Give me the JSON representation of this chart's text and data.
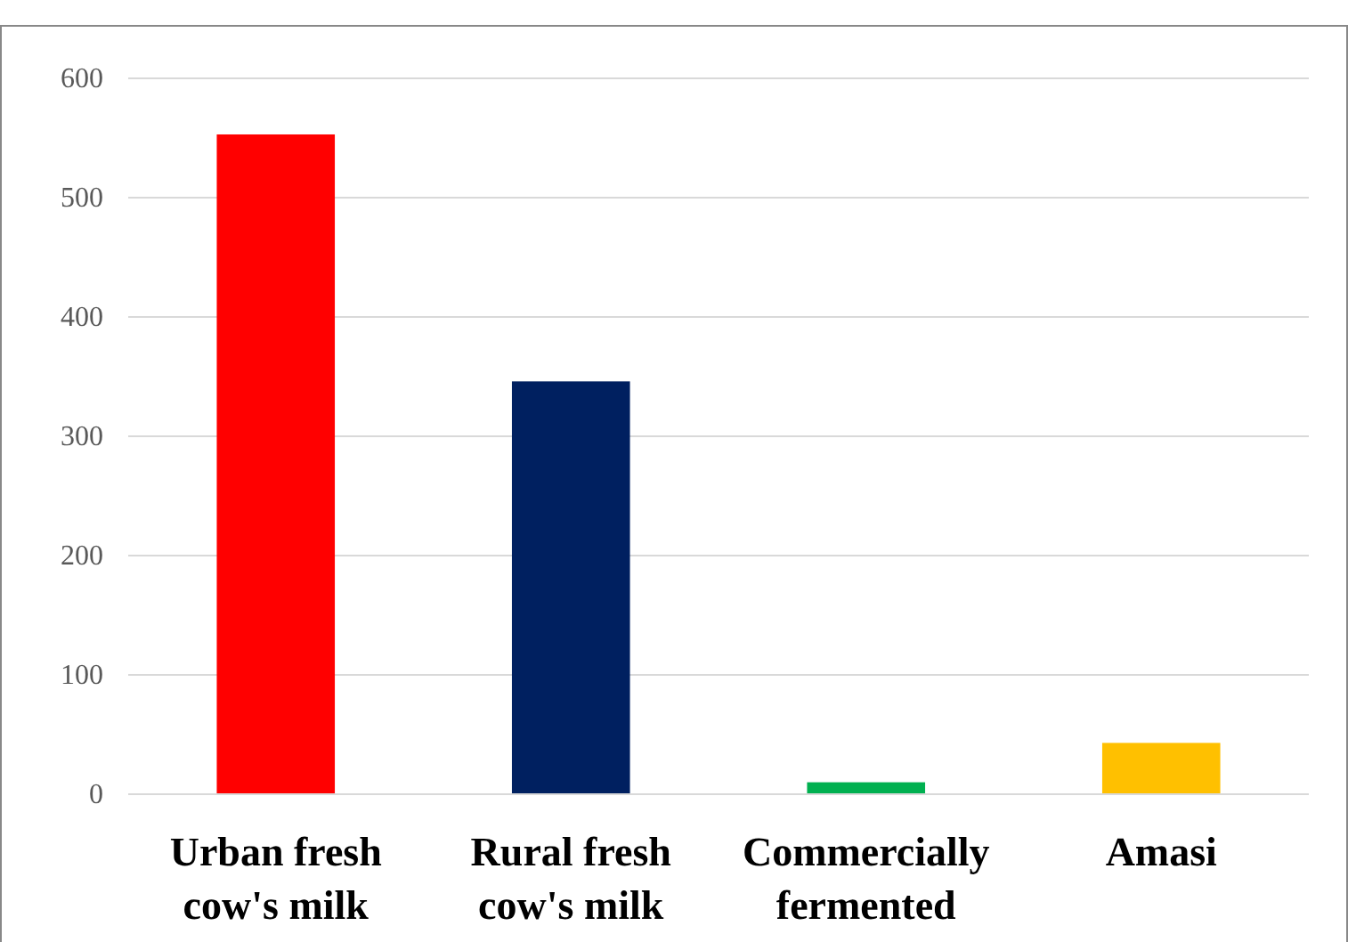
{
  "chart_data": {
    "type": "bar",
    "categories": [
      "Urban fresh cow's milk",
      "Rural fresh cow's milk",
      "Commercially fermented",
      "Amasi"
    ],
    "values": [
      553,
      346,
      10,
      43
    ],
    "colors": [
      "#ff0000",
      "#002060",
      "#00b050",
      "#ffc000"
    ],
    "ylim": [
      0,
      600
    ],
    "yticks": [
      0,
      100,
      200,
      300,
      400,
      500,
      600
    ],
    "grid": "y"
  }
}
